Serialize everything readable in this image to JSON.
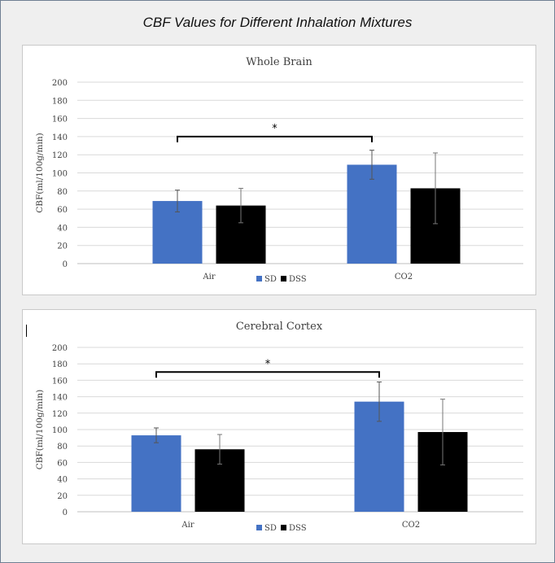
{
  "page_title": "CBF Values for Different Inhalation Mixtures",
  "colors": {
    "SD": "#4472c4",
    "DSS": "#000000",
    "gridline": "#d9d9d9",
    "error_bar": "#555555"
  },
  "chart_data": [
    {
      "type": "bar",
      "title": "Whole Brain",
      "xlabel": "",
      "ylabel": "CBF(ml/100g/min)",
      "ylim": [
        0,
        200
      ],
      "yticks": [
        0,
        20,
        40,
        60,
        80,
        100,
        120,
        140,
        160,
        180,
        200
      ],
      "categories": [
        "Air",
        "CO2"
      ],
      "series": [
        {
          "name": "SD",
          "values": [
            69,
            109
          ],
          "errors": [
            12,
            16
          ]
        },
        {
          "name": "DSS",
          "values": [
            64,
            83
          ],
          "errors": [
            19,
            39
          ]
        }
      ],
      "significance": {
        "from": "Air",
        "to": "CO2",
        "series": "SD",
        "label": "*",
        "level": 140
      },
      "legend": "bottom-center",
      "grid": true
    },
    {
      "type": "bar",
      "title": "Cerebral Cortex",
      "xlabel": "",
      "ylabel": "CBF(ml/100g/min)",
      "ylim": [
        0,
        200
      ],
      "yticks": [
        0,
        20,
        40,
        60,
        80,
        100,
        120,
        140,
        160,
        180,
        200
      ],
      "categories": [
        "Air",
        "CO2"
      ],
      "series": [
        {
          "name": "SD",
          "values": [
            93,
            134
          ],
          "errors": [
            9,
            24
          ]
        },
        {
          "name": "DSS",
          "values": [
            76,
            97
          ],
          "errors": [
            18,
            40
          ]
        }
      ],
      "significance": {
        "from": "Air",
        "to": "CO2",
        "series": "SD",
        "label": "*",
        "level": 170
      },
      "legend": "bottom-center",
      "grid": true
    }
  ]
}
